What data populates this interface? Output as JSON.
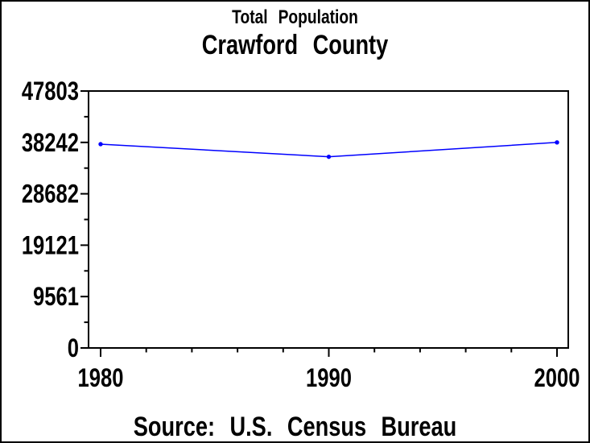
{
  "window": {
    "background": "#ffffff",
    "border_color": "#000000"
  },
  "chart_data": {
    "type": "line",
    "subtitle": "Total Population",
    "title": "Crawford County",
    "source_note": "Source: U.S. Census Bureau",
    "x": [
      1980,
      1990,
      2000
    ],
    "xtick_labels": [
      "1980",
      "1990",
      "2000"
    ],
    "series": [
      {
        "name": "Total Population",
        "values": [
          37916,
          35568,
          38242
        ],
        "color": "#0000ff",
        "marker": "dot"
      }
    ],
    "yticks": [
      0,
      9561,
      19121,
      28682,
      38242,
      47803
    ],
    "ytick_labels": [
      "0",
      "9561",
      "19121",
      "28682",
      "38242",
      "47803"
    ],
    "ylim": [
      0,
      47803
    ],
    "x_minor_ticks_per_interval": 4,
    "y_minor_ticks_per_interval": 1,
    "grid": false,
    "legend": "none",
    "frame": "box",
    "axis_color": "#000000",
    "text_color": "#000000"
  }
}
